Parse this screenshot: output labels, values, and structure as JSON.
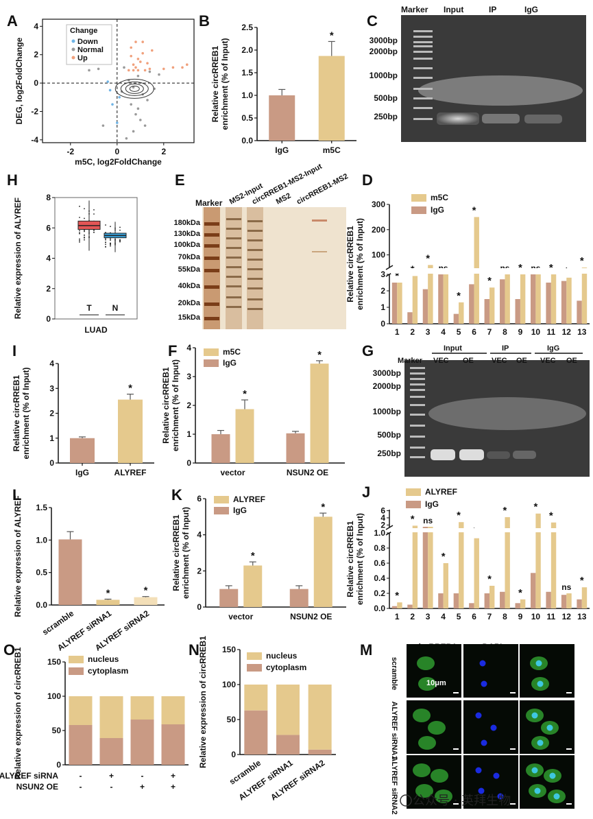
{
  "colors": {
    "brown": "#c99a84",
    "gold": "#e5c98d",
    "down": "#6fb4e6",
    "normal": "#9a9a9a",
    "up": "#f0a07c",
    "red": "#e35656",
    "blue": "#3aa3dc"
  },
  "panel_labels": {
    "A": "A",
    "B": "B",
    "C": "C",
    "D": "D",
    "E": "E",
    "F": "F",
    "G": "G",
    "H": "H",
    "I": "I",
    "J": "J",
    "K": "K",
    "L": "L",
    "M": "M",
    "N": "N",
    "O": "O"
  },
  "watermark": "公众号 · 英拜生物",
  "chart_data": [
    {
      "id": "A",
      "type": "scatter",
      "xlabel": "m5C, log2FoldChange",
      "ylabel": "DEG, log2FoldChange",
      "xlim": [
        -3.2,
        3.3
      ],
      "ylim": [
        -4.2,
        4.5
      ],
      "xticks": [
        -2,
        0,
        2
      ],
      "yticks": [
        -4,
        -2,
        0,
        2,
        4
      ],
      "legend": {
        "title": "Change",
        "items": [
          "Down",
          "Normal",
          "Up"
        ],
        "position": "top-left"
      },
      "series": [
        {
          "name": "Down",
          "points": [
            [
              -0.3,
              -0.5
            ],
            [
              -0.2,
              -1.5
            ],
            [
              0.1,
              -1.0
            ],
            [
              -0.4,
              0.1
            ],
            [
              0.0,
              -2.8
            ]
          ]
        },
        {
          "name": "Normal",
          "points": [
            [
              0.5,
              0.2
            ],
            [
              0.7,
              -0.3
            ],
            [
              0.9,
              0.5
            ],
            [
              1.1,
              -0.8
            ],
            [
              0.6,
              -1.5
            ],
            [
              0.8,
              -2.2
            ],
            [
              1.2,
              -3.0
            ],
            [
              0.4,
              -3.9
            ],
            [
              1.4,
              0.8
            ],
            [
              -0.8,
              1.0
            ],
            [
              -1.2,
              0.9
            ],
            [
              0.3,
              1.1
            ],
            [
              1.0,
              -2.6
            ],
            [
              0.7,
              -3.4
            ],
            [
              1.6,
              -0.4
            ],
            [
              0.2,
              -0.6
            ],
            [
              1.8,
              0.6
            ],
            [
              -0.6,
              -3.0
            ],
            [
              0.9,
              -1.8
            ],
            [
              1.3,
              -1.2
            ]
          ]
        },
        {
          "name": "Up",
          "points": [
            [
              0.5,
              0.9
            ],
            [
              0.7,
              1.3
            ],
            [
              0.9,
              1.7
            ],
            [
              1.1,
              2.1
            ],
            [
              0.6,
              2.5
            ],
            [
              0.8,
              1.1
            ],
            [
              1.0,
              1.5
            ],
            [
              1.2,
              0.9
            ],
            [
              0.7,
              0.9
            ],
            [
              1.4,
              1.0
            ],
            [
              0.9,
              0.9
            ],
            [
              2.0,
              1.0
            ],
            [
              2.8,
              1.1
            ],
            [
              0.8,
              2.9
            ],
            [
              1.1,
              2.9
            ],
            [
              0.6,
              1.9
            ],
            [
              1.3,
              1.4
            ],
            [
              1.5,
              2.3
            ],
            [
              3.0,
              1.3
            ],
            [
              2.4,
              1.1
            ]
          ]
        }
      ]
    },
    {
      "id": "B",
      "type": "bar",
      "categories": [
        "IgG",
        "m5C"
      ],
      "values": [
        1.0,
        1.87
      ],
      "errors": [
        0.13,
        0.32
      ],
      "stars": [
        "",
        "*"
      ],
      "ylabel": "Relative circRREB1 enrichment (% of Input)",
      "ylim": [
        0,
        2.5
      ],
      "yticks": [
        0.0,
        0.5,
        1.0,
        1.5,
        2.0,
        2.5
      ]
    },
    {
      "id": "H",
      "type": "box",
      "categories": [
        "T",
        "N"
      ],
      "boxes": [
        {
          "q1": 5.9,
          "median": 6.15,
          "q3": 6.45,
          "min": 4.5,
          "max": 7.8
        },
        {
          "q1": 5.35,
          "median": 5.5,
          "q3": 5.65,
          "min": 4.4,
          "max": 6.4
        }
      ],
      "ylabel": "Relative expression of ALYREF",
      "xlabel": "LUAD",
      "ylim": [
        0,
        8
      ],
      "yticks": [
        0,
        2,
        4,
        6,
        8
      ]
    },
    {
      "id": "D",
      "type": "bar",
      "categories": [
        "1",
        "2",
        "3",
        "4",
        "5",
        "6",
        "7",
        "8",
        "9",
        "10",
        "11",
        "12",
        "13"
      ],
      "yticks_top": [
        100,
        200,
        300
      ],
      "yticks_bottom": [
        0,
        1,
        2,
        3
      ],
      "ylabel": "Relative circRREB1 enrichment (% of Input)",
      "series": [
        {
          "name": "m5C",
          "values": [
            2.5,
            2.9,
            60,
            30,
            1.3,
            250,
            2.2,
            3.2,
            37,
            3.5,
            3.3,
            2.8,
            50
          ]
        },
        {
          "name": "IgG",
          "values": [
            2.5,
            0.7,
            2.1,
            30,
            0.6,
            2.4,
            1.5,
            2.7,
            1.5,
            3.5,
            2.5,
            2.6,
            1.4
          ]
        }
      ],
      "stars": [
        "*",
        "*",
        "*",
        "ns",
        "*",
        "*",
        "*",
        "ns",
        "*",
        "ns",
        "*",
        "*",
        "*"
      ]
    },
    {
      "id": "I",
      "type": "bar",
      "categories": [
        "IgG",
        "ALYREF"
      ],
      "values": [
        1.0,
        2.55
      ],
      "errors": [
        0.05,
        0.22
      ],
      "stars": [
        "",
        "*"
      ],
      "ylabel": "Relative circRREB1 enrichment (% of Input)",
      "ylim": [
        0,
        4
      ],
      "yticks": [
        0,
        1,
        2,
        3,
        4
      ]
    },
    {
      "id": "F",
      "type": "bar",
      "categories": [
        "vector",
        "NSUN2 OE"
      ],
      "series": [
        {
          "name": "m5C",
          "values": [
            1.87,
            3.45
          ]
        },
        {
          "name": "IgG",
          "values": [
            1.0,
            1.03
          ]
        }
      ],
      "errors": {
        "m5C": [
          0.32,
          0.1
        ],
        "IgG": [
          0.13,
          0.07
        ]
      },
      "stars": [
        "*",
        "*"
      ],
      "ylabel": "Relative circRREB1 enrichment (% of Input)",
      "ylim": [
        0,
        4
      ],
      "yticks": [
        0,
        1,
        2,
        3,
        4
      ]
    },
    {
      "id": "L",
      "type": "bar",
      "categories": [
        "scramble",
        "ALYREF siRNA1",
        "ALYREF siRNA2"
      ],
      "values": [
        1.01,
        0.08,
        0.12
      ],
      "errors": [
        0.12,
        0.01,
        0.01
      ],
      "stars": [
        "",
        "*",
        "*"
      ],
      "ylabel": "Relative expression of ALYREF",
      "ylim": [
        0,
        1.5
      ],
      "yticks": [
        0.0,
        0.5,
        1.0,
        1.5
      ]
    },
    {
      "id": "K",
      "type": "bar",
      "categories": [
        "vector",
        "NSUN2 OE"
      ],
      "series": [
        {
          "name": "ALYREF",
          "values": [
            2.3,
            5.0
          ]
        },
        {
          "name": "IgG",
          "values": [
            1.0,
            1.0
          ]
        }
      ],
      "errors": {
        "ALYREF": [
          0.2,
          0.2
        ],
        "IgG": [
          0.18,
          0.18
        ]
      },
      "stars": [
        "*",
        "*"
      ],
      "ylabel": "Relative circRREB1 enrichment (% of Input)",
      "ylim": [
        0,
        6
      ],
      "yticks": [
        0,
        2,
        4,
        6
      ]
    },
    {
      "id": "J",
      "type": "bar",
      "categories": [
        "1",
        "2",
        "3",
        "4",
        "5",
        "6",
        "7",
        "8",
        "9",
        "10",
        "11",
        "12",
        "13"
      ],
      "yticks_top": [
        2,
        4,
        6
      ],
      "yticks_bottom": [
        0.0,
        0.2,
        0.4,
        0.6,
        0.8,
        1.0
      ],
      "ylabel": "Relative circRREB1 enrichment (% of Input)",
      "series": [
        {
          "name": "ALYREF",
          "values": [
            0.08,
            1.8,
            1.5,
            0.6,
            2.8,
            0.93,
            0.3,
            4.2,
            0.12,
            5.2,
            2.7,
            0.2,
            0.28
          ]
        },
        {
          "name": "IgG",
          "values": [
            0.03,
            0.05,
            1.5,
            0.2,
            0.2,
            0.07,
            0.2,
            0.22,
            0.07,
            0.47,
            0.22,
            0.18,
            0.12
          ]
        }
      ],
      "stars": [
        "*",
        "*",
        "ns",
        "*",
        "*",
        "*",
        "*",
        "*",
        "*",
        "*",
        "*",
        "ns",
        "*"
      ]
    },
    {
      "id": "O",
      "type": "stacked-bar",
      "series": [
        {
          "name": "nucleus",
          "values": [
            42,
            61,
            34,
            41
          ]
        },
        {
          "name": "cytoplasm",
          "values": [
            58,
            39,
            66,
            59
          ]
        }
      ],
      "ylabel": "Relative expression of circRREB1",
      "ylim": [
        0,
        150
      ],
      "yticks": [
        0,
        50,
        100,
        150
      ],
      "rows": [
        {
          "label": "ALYREF siRNA",
          "values": [
            "-",
            "+",
            "-",
            "+"
          ]
        },
        {
          "label": "NSUN2 OE",
          "values": [
            "-",
            "-",
            "+",
            "+"
          ]
        }
      ]
    },
    {
      "id": "N",
      "type": "stacked-bar",
      "categories": [
        "scramble",
        "ALYREF siRNA1",
        "ALYREF siRNA2"
      ],
      "series": [
        {
          "name": "nucleus",
          "values": [
            37,
            72,
            93
          ]
        },
        {
          "name": "cytoplasm",
          "values": [
            63,
            28,
            7
          ]
        }
      ],
      "ylabel": "Relative expression of circRREB1",
      "ylim": [
        0,
        150
      ],
      "yticks": [
        0,
        50,
        100,
        150
      ]
    }
  ],
  "gel_C": {
    "headers": [
      "Marker",
      "Input",
      "IP",
      "IgG"
    ],
    "sizes": [
      "3000bp",
      "2000bp",
      "1000bp",
      "500bp",
      "250bp"
    ]
  },
  "gel_E": {
    "headers": [
      "Marker",
      "MS2-Input",
      "circRREB1-MS2-Input",
      "MS2",
      "circRREB1-MS2"
    ],
    "sizes": [
      "180kDa",
      "130kDa",
      "100kDa",
      "70kDa",
      "55kDa",
      "40kDa",
      "20kDa",
      "15kDa"
    ]
  },
  "gel_G": {
    "marker": "Marker",
    "groups": [
      "Input",
      "IP",
      "IgG"
    ],
    "lanes": [
      "VEC",
      "OE",
      "VEC",
      "OE",
      "VEC",
      "OE"
    ],
    "sizes": [
      "3000bp",
      "2000bp",
      "1000bp",
      "500bp",
      "250bp"
    ]
  },
  "micro_M": {
    "cols": [
      "circRREB1",
      "DAPI",
      "Merge"
    ],
    "col_labels": [
      "circRREB1",
      "DAPI"
    ],
    "rows": [
      "scramble",
      "ALYREF siRNA1",
      "ALYREF siRNA2"
    ],
    "scale": "10μm"
  }
}
